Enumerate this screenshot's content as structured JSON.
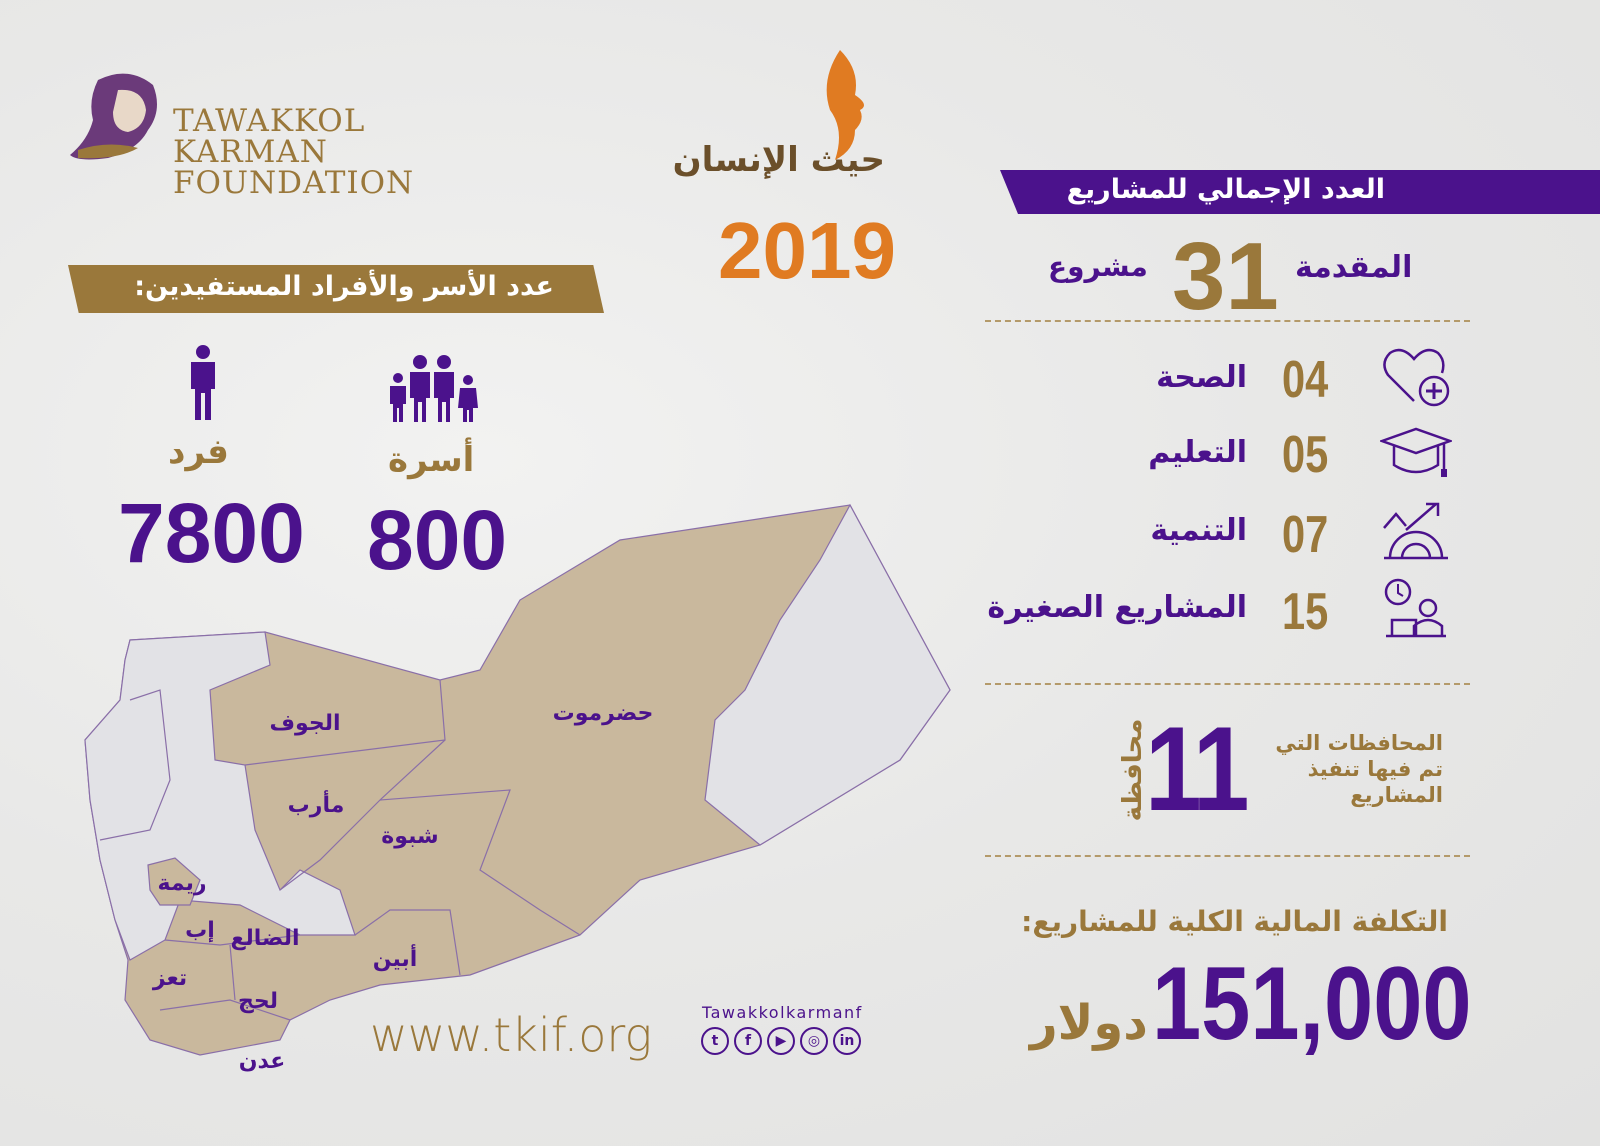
{
  "logo": {
    "lines": [
      "TAWAKKOL",
      "KARMAN",
      "FOUNDATION"
    ]
  },
  "campaign": {
    "logo_text": "حيث الإنسان",
    "year": "2019"
  },
  "projects": {
    "banner": "العدد الإجمالي للمشاريع",
    "total_prefix": "المقدمة",
    "total": "31",
    "total_suffix": "مشروع",
    "categories": [
      {
        "icon": "heart-plus-icon",
        "count": "04",
        "label": "الصحة"
      },
      {
        "icon": "graduation-cap-icon",
        "count": "05",
        "label": "التعليم"
      },
      {
        "icon": "growth-gear-icon",
        "count": "07",
        "label": "التنمية"
      },
      {
        "icon": "clock-worker-icon",
        "count": "15",
        "label": "المشاريع الصغيرة"
      }
    ],
    "governorates_count": "11",
    "governorates_unit": "محافظة",
    "governorates_text": [
      "المحافظات التي",
      "تم فيها تنفيذ",
      "المشاريع"
    ],
    "cost_label": "التكلفة المالية الكلية للمشاريع:",
    "cost_value": "151,000",
    "cost_currency": "دولار"
  },
  "beneficiaries": {
    "banner": "عدد الأسر والأفراد المستفيدين:",
    "individuals_label": "فرد",
    "individuals": "7800",
    "families_label": "أسرة",
    "families": "800"
  },
  "map": {
    "regions": [
      "الجوف",
      "حضرموت",
      "مأرب",
      "شبوة",
      "ريمة",
      "الضالع",
      "إب",
      "أبين",
      "تعز",
      "لحج",
      "عدن"
    ],
    "colors": {
      "served": "#c9b89d",
      "other": "#e2e2e6",
      "border": "#8a6fa8"
    }
  },
  "footer": {
    "website": "www.tkif.org",
    "social_handle": "Tawakkolkarmanf",
    "social": [
      "twitter-icon",
      "facebook-icon",
      "youtube-icon",
      "instagram-icon",
      "linkedin-icon"
    ]
  },
  "colors": {
    "purple": "#4b128c",
    "gold": "#9a783b",
    "orange": "#e07b22"
  }
}
